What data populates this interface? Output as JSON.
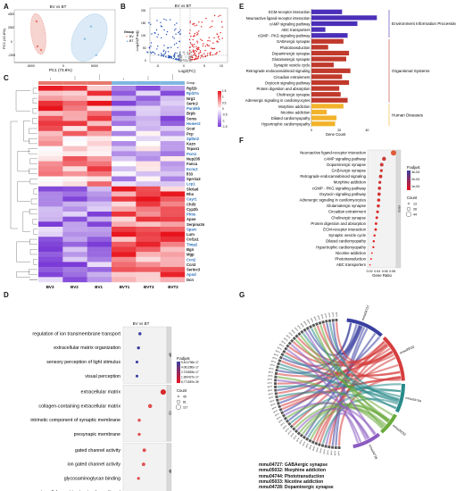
{
  "panels": {
    "A": {
      "label": "A",
      "title": "BV vs BT",
      "xlabel": "PC1 (73.8%)",
      "ylabel": "PC2 (15.8%)",
      "xticks": [
        "-5000",
        "0",
        "5000"
      ],
      "yticks": [
        "-2000",
        "0",
        "2000",
        "4000"
      ],
      "legend_title": "Group",
      "legend_items": [
        "BV",
        "BT"
      ],
      "colors": {
        "BV": "#e8786d",
        "BT": "#7fb6e0"
      }
    },
    "B": {
      "label": "B",
      "title": "BV vs BT",
      "xlabel": "Log2(FC)",
      "ylabel": "-Log10(P.adj)",
      "xticks": [
        "-5",
        "0",
        "5",
        "10"
      ],
      "yticks": [
        "0",
        "50",
        "100",
        "150",
        "200"
      ],
      "colors": {
        "up": "#e01b1b",
        "down": "#1f4fb8",
        "ns": "#b0b0b0"
      }
    },
    "C": {
      "label": "C",
      "group_label": "Group",
      "genes": [
        "Rgl1b",
        "Rpl37a",
        "Nrg1",
        "Sertc2",
        "Paral6b",
        "Brpb",
        "Soms",
        "Homer2",
        "Gcat",
        "Pcp",
        "Splbn2",
        "Kazn",
        "Tspan1",
        "Pcm1",
        "Nup205",
        "Fanca",
        "Kcnc2",
        "ll33",
        "Sprr2a3",
        "Lcp1",
        "Slc6a6",
        "Rho",
        "Cayr1",
        "Chil3",
        "Cyp2b",
        "Ptms",
        "Apoe",
        "Serpina3n",
        "Sparc",
        "Lum",
        "Col1a1",
        "Timp2",
        "Bgn",
        "Mgp",
        "Ccn2",
        "Ccn3",
        "Serinc3",
        "Apod",
        "Dcn"
      ],
      "samples": [
        "BV3",
        "BV2",
        "BV1",
        "BVT1",
        "BVT3",
        "BVT2"
      ],
      "scale_ticks": [
        "1.5",
        "1",
        "0.5",
        "0",
        "-0.5",
        "-1",
        "-1.5"
      ],
      "colors": {
        "high": "#e8141c",
        "mid": "#ffffff",
        "low": "#7a3bd6"
      }
    },
    "D": {
      "label": "D",
      "title": "BV vs BT",
      "xlabel": "Gene Ratio",
      "xticks": [
        "0.03",
        "0.04",
        "0.05",
        "0.06",
        "0.07",
        "0.08",
        "0.09"
      ],
      "terms": [
        {
          "name": "regulation of ion transmembrane transport",
          "ratio": 0.053,
          "category": "BP"
        },
        {
          "name": "extracellular matrix organization",
          "ratio": 0.051,
          "category": "BP"
        },
        {
          "name": "sensory perception of light stimulus",
          "ratio": 0.049,
          "category": "BP"
        },
        {
          "name": "visual perception",
          "ratio": 0.049,
          "category": "BP"
        },
        {
          "name": "extracellular matrix",
          "ratio": 0.085,
          "category": "CC"
        },
        {
          "name": "collagen-containing extracellular matrix",
          "ratio": 0.067,
          "category": "CC"
        },
        {
          "name": "intrinstic component of synaptic membrane",
          "ratio": 0.052,
          "category": "CC"
        },
        {
          "name": "presynapic membrane",
          "ratio": 0.052,
          "category": "CC"
        },
        {
          "name": "gated channel activity",
          "ratio": 0.059,
          "category": "MF"
        },
        {
          "name": "ion gated channel activity",
          "ratio": 0.058,
          "category": "MF"
        },
        {
          "name": "glycosaminoglycan binding",
          "ratio": 0.051,
          "category": "MF"
        },
        {
          "name": "extracellular matrix structural constituent",
          "ratio": 0.045,
          "category": "MF"
        }
      ],
      "padj_title": "P.adjust",
      "padj_ticks": [
        "5.441706e-17",
        "4.081280e-17",
        "2.720853e-17",
        "1.360427e-17",
        "8.771587e-39"
      ],
      "count_title": "Count",
      "count_ticks": [
        "45",
        "81",
        "117"
      ],
      "categories": [
        "BP",
        "CC",
        "MF"
      ]
    },
    "E": {
      "label": "E",
      "xlabel": "Gene Count",
      "xticks": [
        "0",
        "20",
        "40"
      ],
      "terms": [
        {
          "name": "ECM-receptor interaction",
          "count": 22,
          "group": "env"
        },
        {
          "name": "Neuroactive ligand-receptor interaction",
          "count": 47,
          "group": "env"
        },
        {
          "name": "cAMP signaling pathway",
          "count": 33,
          "group": "env"
        },
        {
          "name": "ABC transporters",
          "count": 10,
          "group": "env"
        },
        {
          "name": "cGMP - PKG signaling pathway",
          "count": 26,
          "group": "env"
        },
        {
          "name": "GABAergic synapse",
          "count": 23,
          "group": "org"
        },
        {
          "name": "Phototransduction",
          "count": 12,
          "group": "org"
        },
        {
          "name": "Dopaminergic synapse",
          "count": 27,
          "group": "org"
        },
        {
          "name": "Glutamatergic synapse",
          "count": 25,
          "group": "org"
        },
        {
          "name": "Synaptic vesicle cycle",
          "count": 16,
          "group": "org"
        },
        {
          "name": "Retrograde endocannabinoid signaling",
          "count": 28,
          "group": "org"
        },
        {
          "name": "Circadian entrainment",
          "count": 22,
          "group": "org"
        },
        {
          "name": "Oxytocin signaling pathway",
          "count": 27,
          "group": "org"
        },
        {
          "name": "Protein digestion and absorption",
          "count": 20,
          "group": "org"
        },
        {
          "name": "Cholinergic synapse",
          "count": 21,
          "group": "org"
        },
        {
          "name": "Adrenergic signaling in cardiomyocytes",
          "count": 26,
          "group": "org"
        },
        {
          "name": "Morphine addiction",
          "count": 23,
          "group": "hum"
        },
        {
          "name": "Nicotine addiction",
          "count": 11,
          "group": "hum"
        },
        {
          "name": "Dilated cardiomyopathy",
          "count": 18,
          "group": "hum"
        },
        {
          "name": "Hypertrophic cardiomyopathy",
          "count": 17,
          "group": "hum"
        }
      ],
      "group_labels": {
        "env": "Environment Information Processing",
        "org": "Organismal Systems",
        "hum": "Human Diseases"
      },
      "colors": {
        "env": "#4b2fb8",
        "org": "#c0392b",
        "hum": "#f2b32a"
      }
    },
    "F": {
      "label": "F",
      "xlabel": "Gene Ratio",
      "xticks": [
        "0.02",
        "0.04",
        "0.06",
        "0.08"
      ],
      "terms": [
        {
          "name": "Neuroactive ligand-receptor interaction",
          "ratio": 0.083,
          "count": 44
        },
        {
          "name": "cAMP signaling pathway",
          "ratio": 0.058,
          "count": 32
        },
        {
          "name": "Dopaminergic synapse",
          "ratio": 0.052,
          "count": 28
        },
        {
          "name": "GABAergic synapse",
          "ratio": 0.051,
          "count": 23
        },
        {
          "name": "Retrograde endocannabinoid signaling",
          "ratio": 0.049,
          "count": 27
        },
        {
          "name": "Morphine addiction",
          "ratio": 0.047,
          "count": 23
        },
        {
          "name": "cGMP - PKG signaling pathway",
          "ratio": 0.046,
          "count": 26
        },
        {
          "name": "Oxytocin signaling pathway",
          "ratio": 0.045,
          "count": 26
        },
        {
          "name": "Adrenergic signaling in cardiomyocytes",
          "ratio": 0.044,
          "count": 25
        },
        {
          "name": "Glutamatergic synapse",
          "ratio": 0.043,
          "count": 24
        },
        {
          "name": "Circadian entrainment",
          "ratio": 0.041,
          "count": 22
        },
        {
          "name": "Cholinergic synapse",
          "ratio": 0.039,
          "count": 21
        },
        {
          "name": "Protein digestion and absorption",
          "ratio": 0.037,
          "count": 20
        },
        {
          "name": "ECM-receptor interaction",
          "ratio": 0.036,
          "count": 20
        },
        {
          "name": "Synaptic vesicle cycle",
          "ratio": 0.033,
          "count": 17
        },
        {
          "name": "Dilated cardiomyopathy",
          "ratio": 0.031,
          "count": 17
        },
        {
          "name": "Hypertrophic cardiomyopathy",
          "ratio": 0.03,
          "count": 16
        },
        {
          "name": "Nicotine addiction",
          "ratio": 0.026,
          "count": 12
        },
        {
          "name": "Phototransduction",
          "ratio": 0.024,
          "count": 12
        },
        {
          "name": "ABC transporters",
          "ratio": 0.021,
          "count": 10
        }
      ],
      "padj_title": "P.adjust",
      "padj_ticks": [
        "3e-04",
        "2e-04",
        "1e-04"
      ],
      "count_title": "Count",
      "count_ticks": [
        "13",
        "28",
        "44"
      ],
      "strip_label": "KEGG"
    },
    "G": {
      "label": "G",
      "pathways": [
        {
          "id": "mmu04727",
          "name": "GABAergic synapse",
          "color": "#3a3fa0"
        },
        {
          "id": "mmu05032",
          "name": "Morphine addiction",
          "color": "#d63d3d"
        },
        {
          "id": "mmu04744",
          "name": "Phototransduction",
          "color": "#2a8a8a"
        },
        {
          "id": "mmu05033",
          "name": "Nicotine addiction",
          "color": "#6aaa3a"
        },
        {
          "id": "mmu04728",
          "name": "Dopaminergic synapse",
          "color": "#8a5bc0"
        }
      ],
      "captions": [
        "mmu04727: GABAergic synapse",
        "mmu05032: Morphine addiction",
        "mmu04744: Phototransduction",
        "mmu05033: Nicotine addiction",
        "mmu04728: Dopaminergic synapse"
      ]
    }
  }
}
